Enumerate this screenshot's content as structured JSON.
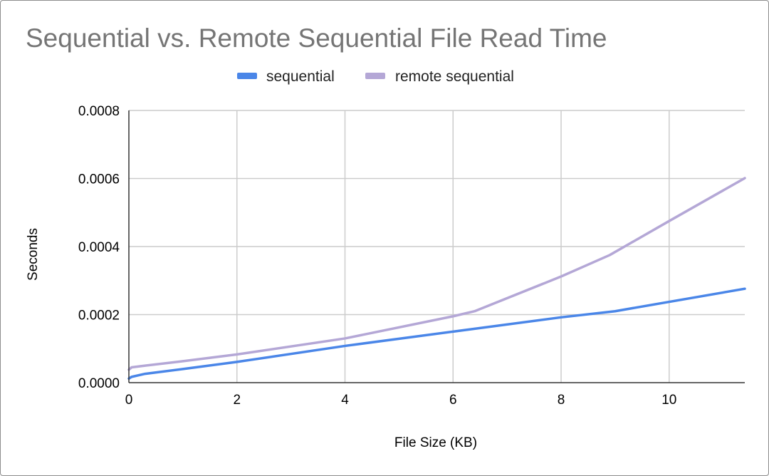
{
  "chart_data": {
    "type": "line",
    "title": "Sequential vs. Remote Sequential File Read Time",
    "xlabel": "File Size (KB)",
    "ylabel": "Seconds",
    "xlim": [
      0,
      11.4
    ],
    "ylim": [
      0,
      0.0008
    ],
    "xticks": [
      "0",
      "2",
      "4",
      "6",
      "8",
      "10"
    ],
    "xtick_values": [
      0,
      2,
      4,
      6,
      8,
      10
    ],
    "yticks": [
      "0.0000",
      "0.0002",
      "0.0004",
      "0.0006",
      "0.0008"
    ],
    "ytick_values": [
      0,
      0.0002,
      0.0004,
      0.0006,
      0.0008
    ],
    "grid": true,
    "legend_position": "top",
    "series": [
      {
        "name": "sequential",
        "color": "#4a86e8",
        "x": [
          0,
          0.05,
          0.3,
          1,
          2,
          4,
          6,
          8,
          9,
          11.4
        ],
        "y": [
          1.2e-05,
          1.7e-05,
          2.6e-05,
          4e-05,
          6.1e-05,
          0.000108,
          0.00015,
          0.000192,
          0.00021,
          0.000276
        ]
      },
      {
        "name": "remote sequential",
        "color": "#b4a7d6",
        "x": [
          0,
          0.05,
          0.3,
          1,
          2,
          4,
          6,
          6.4,
          8,
          8.9,
          10,
          11.4
        ],
        "y": [
          3.8e-05,
          4.5e-05,
          5e-05,
          6.3e-05,
          8.3e-05,
          0.00013,
          0.000195,
          0.00021,
          0.000312,
          0.000375,
          0.000475,
          0.000601
        ]
      }
    ]
  }
}
